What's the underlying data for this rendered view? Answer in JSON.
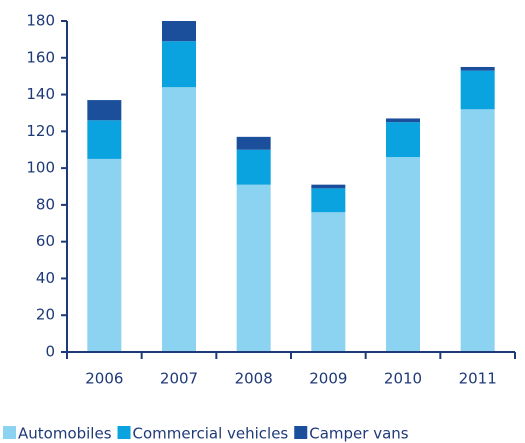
{
  "chart_data": {
    "type": "stacked_bar",
    "categories": [
      "2006",
      "2007",
      "2008",
      "2009",
      "2010",
      "2011"
    ],
    "series": [
      {
        "name": "Automobiles",
        "color": "#8cd2f1",
        "values": [
          105,
          144,
          91,
          76,
          106,
          132
        ]
      },
      {
        "name": "Commercial vehicles",
        "color": "#0aa2df",
        "values": [
          21,
          25,
          19,
          13,
          19,
          21
        ]
      },
      {
        "name": "Camper vans",
        "color": "#1b4f9c",
        "values": [
          11,
          11,
          7,
          2,
          2,
          2
        ]
      }
    ],
    "ylim": [
      0,
      180
    ],
    "yticks": [
      0,
      20,
      40,
      60,
      80,
      100,
      120,
      140,
      160,
      180
    ],
    "grid": false,
    "legend": "bottom"
  }
}
